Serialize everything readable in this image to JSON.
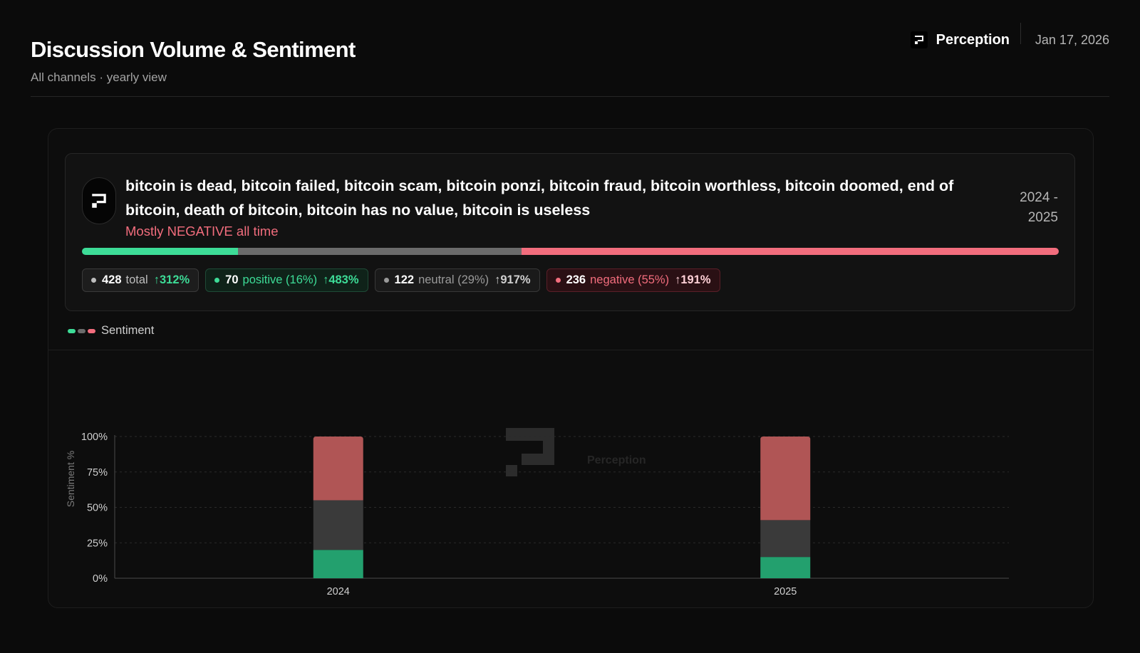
{
  "header": {
    "title": "Discussion Volume & Sentiment",
    "subtitle": "All channels · yearly view",
    "brand": "Perception",
    "date": "Jan 17, 2026"
  },
  "card": {
    "keywords": "bitcoin is dead, bitcoin failed, bitcoin scam, bitcoin ponzi, bitcoin fraud, bitcoin worthless, bitcoin doomed, end of bitcoin, death of bitcoin, bitcoin has no value, bitcoin is useless",
    "summary": "Mostly NEGATIVE all time",
    "date_range": "2024 - 2025",
    "sentiment_split": {
      "positive": 16,
      "neutral": 29,
      "negative": 55
    },
    "stats": {
      "total": {
        "value": "428",
        "label": "total",
        "change": "↑312%"
      },
      "positive": {
        "value": "70",
        "label": "positive (16%)",
        "change": "↑483%"
      },
      "neutral": {
        "value": "122",
        "label": "neutral (29%)",
        "change": "↑917%"
      },
      "negative": {
        "value": "236",
        "label": "negative (55%)",
        "change": "↑191%"
      }
    }
  },
  "legend": {
    "label": "Sentiment"
  },
  "colors": {
    "positive": "#3ddc97",
    "neutral": "#6b6b6b",
    "negative": "#f26d7d",
    "bar_positive": "#23a06e",
    "bar_neutral": "#3a3a3a",
    "bar_negative": "#b05555"
  },
  "chart_data": {
    "type": "bar",
    "stacked": true,
    "categories": [
      "2024",
      "2025"
    ],
    "series": [
      {
        "name": "positive",
        "values": [
          20,
          15
        ]
      },
      {
        "name": "neutral",
        "values": [
          35,
          26
        ]
      },
      {
        "name": "negative",
        "values": [
          45,
          59
        ]
      }
    ],
    "ylabel": "Sentiment %",
    "ylim": [
      0,
      100
    ],
    "yticks": [
      "0%",
      "25%",
      "50%",
      "75%",
      "100%"
    ],
    "ytick_values": [
      0,
      25,
      50,
      75,
      100
    ],
    "grid": true,
    "watermark": "Perception"
  }
}
